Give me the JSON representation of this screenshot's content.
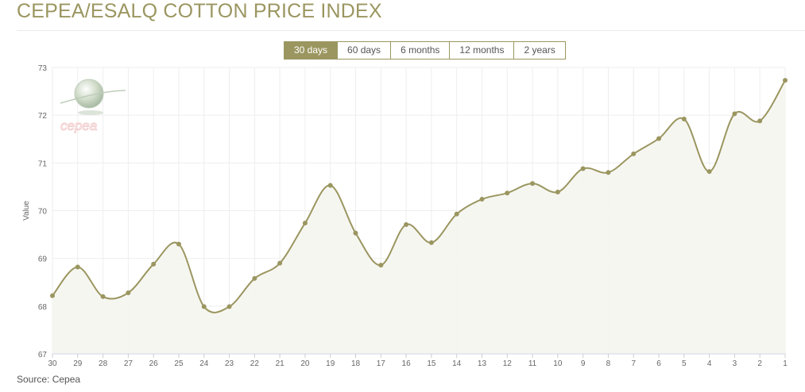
{
  "header": {
    "title": "CEPEA/ESALQ COTTON PRICE INDEX"
  },
  "range_tabs": [
    {
      "label": "30 days",
      "active": true
    },
    {
      "label": "60 days",
      "active": false
    },
    {
      "label": "6 months",
      "active": false
    },
    {
      "label": "12 months",
      "active": false
    },
    {
      "label": "2 years",
      "active": false
    }
  ],
  "watermark": {
    "text": "cepea",
    "icon": "globe-logo-icon"
  },
  "footer": {
    "source": "Source: Cepea"
  },
  "colors": {
    "accent": "#9b9660",
    "line": "#9b9660",
    "area": "#f5f5f0",
    "grid": "#eeeeee",
    "watermark_text": "#f2c9c9"
  },
  "chart_data": {
    "type": "area",
    "title": "",
    "xlabel": "",
    "ylabel": "Value",
    "categories": [
      "30",
      "29",
      "28",
      "27",
      "26",
      "25",
      "24",
      "23",
      "22",
      "21",
      "20",
      "19",
      "18",
      "17",
      "16",
      "15",
      "14",
      "13",
      "12",
      "11",
      "10",
      "9",
      "8",
      "7",
      "6",
      "5",
      "4",
      "3",
      "2",
      "1"
    ],
    "series": [
      {
        "values": [
          68.22,
          68.82,
          68.2,
          68.28,
          68.88,
          69.3,
          67.99,
          67.99,
          68.58,
          68.9,
          69.74,
          70.53,
          69.53,
          68.86,
          69.71,
          69.33,
          69.93,
          70.24,
          70.37,
          70.57,
          70.39,
          70.88,
          70.8,
          71.19,
          71.51,
          71.92,
          70.82,
          72.03,
          71.88,
          72.73
        ]
      }
    ],
    "ylim": [
      67,
      73
    ],
    "yticks": [
      "73",
      "72",
      "71",
      "70",
      "69",
      "68",
      "67"
    ],
    "grid": true,
    "legend": "none"
  }
}
